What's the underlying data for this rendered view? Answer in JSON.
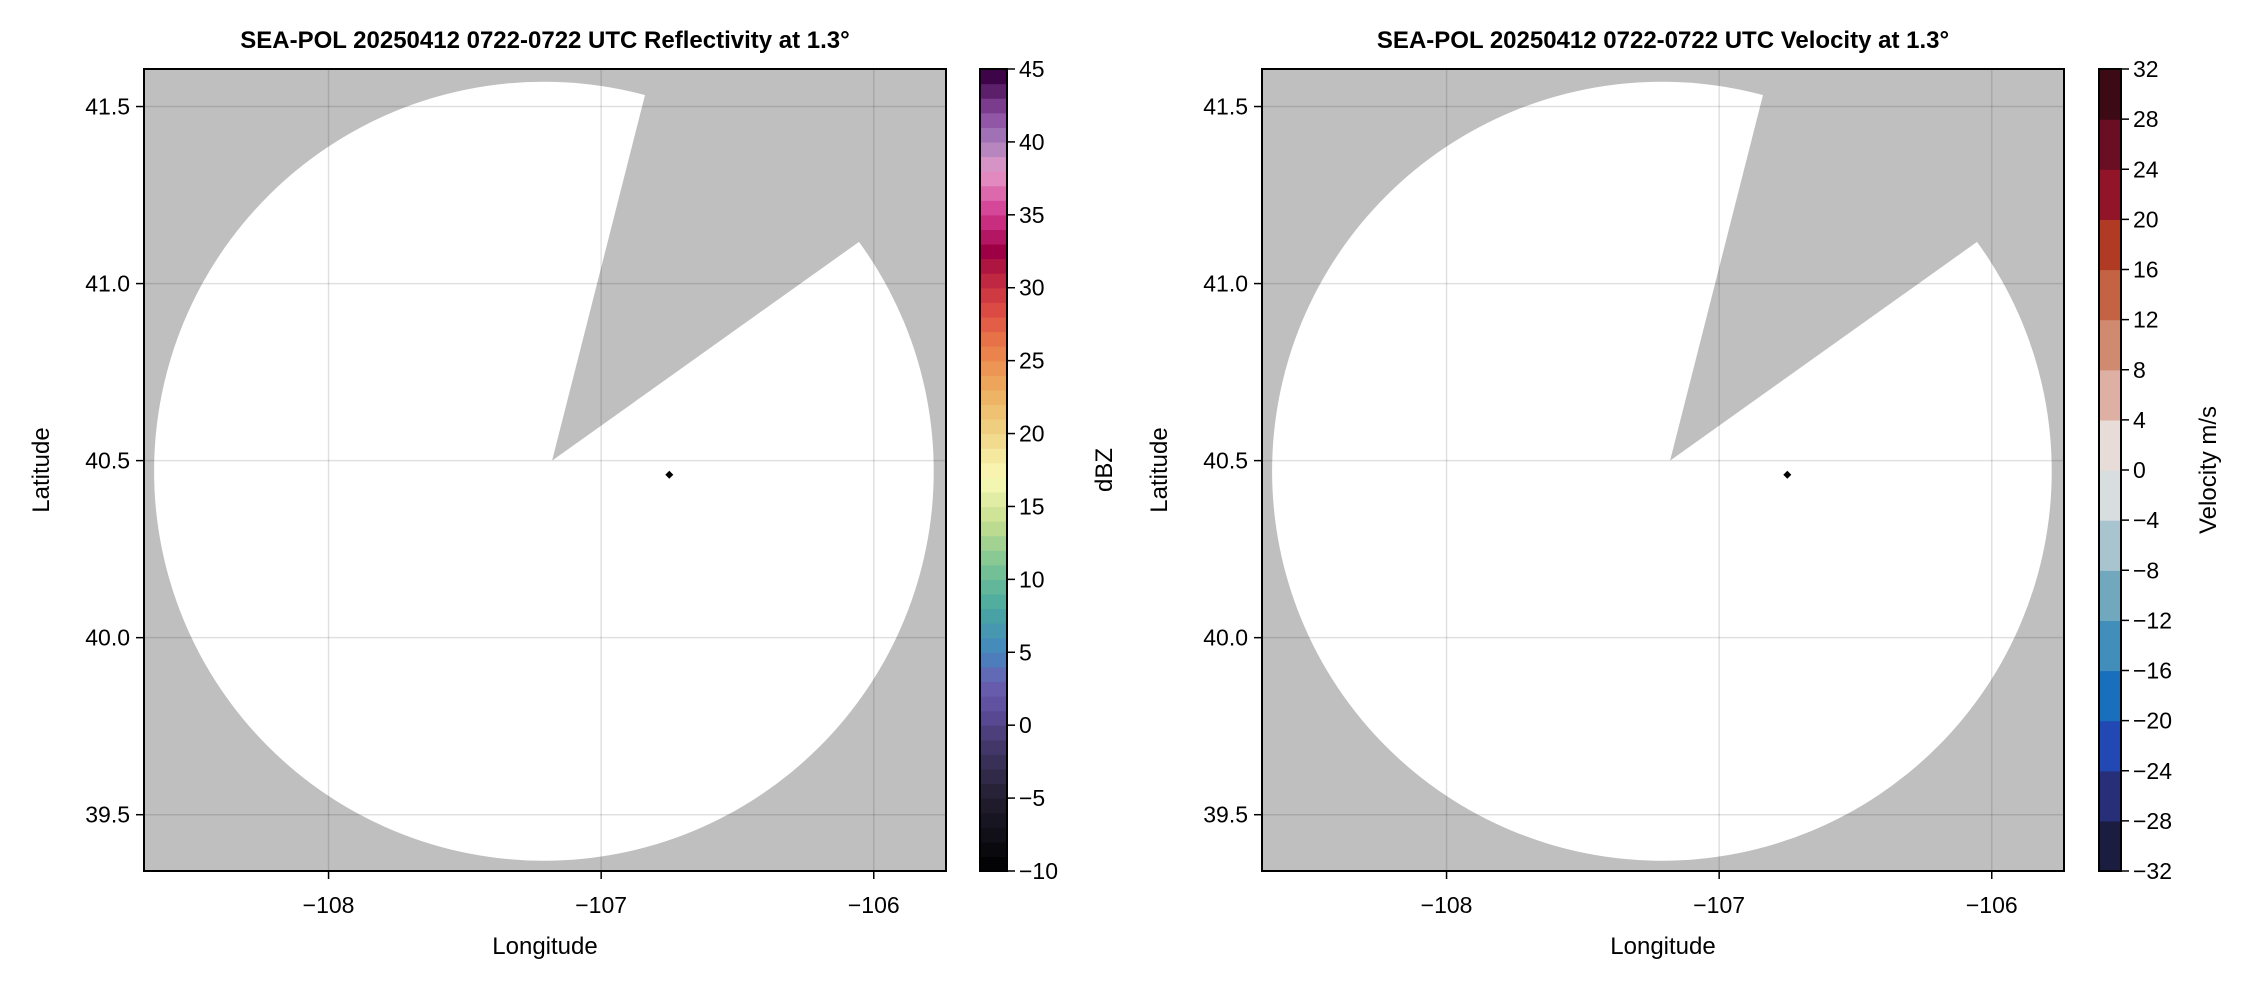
{
  "chart_data": [
    {
      "type": "heatmap",
      "title": "SEA-POL 20250412 0722-0722 UTC Reflectivity at 1.3°",
      "xlabel": "Longitude",
      "ylabel": "Latitude",
      "xlim": [
        -108.677,
        -105.735
      ],
      "ylim": [
        39.341,
        41.606
      ],
      "xticks": [
        "−108",
        "−107",
        "−106"
      ],
      "xtick_values": [
        -108,
        -107,
        -106
      ],
      "yticks": [
        "39.5",
        "40.0",
        "40.5",
        "41.0",
        "41.5"
      ],
      "ytick_values": [
        39.5,
        40.0,
        40.5,
        41.0,
        41.5
      ],
      "grid": true,
      "background_color": "#bfbfbf",
      "coverage": {
        "center": [
          -107.21,
          40.47
        ],
        "radius_lon": 1.43,
        "radius_lat": 1.1,
        "fill": "#ffffff"
      },
      "blocked_sector": {
        "apex": [
          -107.18,
          40.5
        ],
        "ray1_end": [
          -106.84,
          41.53
        ],
        "ray2_end": [
          -106.05,
          41.12
        ]
      },
      "marker": {
        "lon": -106.75,
        "lat": 40.46
      },
      "colorbar": {
        "label": "dBZ",
        "range": [
          -10,
          45
        ],
        "bin": 1,
        "ticks": [
          "−10",
          "−5",
          "0",
          "5",
          "10",
          "15",
          "20",
          "25",
          "30",
          "35",
          "40",
          "45"
        ],
        "tick_values": [
          -10,
          -5,
          0,
          5,
          10,
          15,
          20,
          25,
          30,
          35,
          40,
          45
        ],
        "color_stops": [
          [
            -10,
            "#000000"
          ],
          [
            -5,
            "#221e30"
          ],
          [
            -1,
            "#463a70"
          ],
          [
            1,
            "#5c4c9c"
          ],
          [
            3,
            "#6a60b0"
          ],
          [
            5,
            "#4586c0"
          ],
          [
            8,
            "#48a8a0"
          ],
          [
            11,
            "#7cc494"
          ],
          [
            14,
            "#c8e090"
          ],
          [
            17,
            "#fafab8"
          ],
          [
            20,
            "#f0d585"
          ],
          [
            23,
            "#eead60"
          ],
          [
            26,
            "#ea7c48"
          ],
          [
            28.5,
            "#dc4a44"
          ],
          [
            31,
            "#b8203f"
          ],
          [
            32.5,
            "#9e0046"
          ],
          [
            35,
            "#d2388f"
          ],
          [
            38,
            "#e599c8"
          ],
          [
            40,
            "#a77fbc"
          ],
          [
            42,
            "#8a4a9e"
          ],
          [
            44.5,
            "#3e0448"
          ]
        ]
      }
    },
    {
      "type": "heatmap",
      "title": "SEA-POL 20250412 0722-0722 UTC Velocity at 1.3°",
      "xlabel": "Longitude",
      "ylabel": "Latitude",
      "xlim": [
        -108.677,
        -105.735
      ],
      "ylim": [
        39.341,
        41.606
      ],
      "xticks": [
        "−108",
        "−107",
        "−106"
      ],
      "xtick_values": [
        -108,
        -107,
        -106
      ],
      "yticks": [
        "39.5",
        "40.0",
        "40.5",
        "41.0",
        "41.5"
      ],
      "ytick_values": [
        39.5,
        40.0,
        40.5,
        41.0,
        41.5
      ],
      "grid": true,
      "background_color": "#bfbfbf",
      "coverage": {
        "center": [
          -107.21,
          40.47
        ],
        "radius_lon": 1.43,
        "radius_lat": 1.1,
        "fill": "#ffffff"
      },
      "blocked_sector": {
        "apex": [
          -107.18,
          40.5
        ],
        "ray1_end": [
          -106.84,
          41.53
        ],
        "ray2_end": [
          -106.05,
          41.12
        ]
      },
      "marker": {
        "lon": -106.75,
        "lat": 40.46
      },
      "colorbar": {
        "label": "Velocity m/s",
        "range": [
          -32,
          32
        ],
        "bin": 4,
        "ticks": [
          "−32",
          "−28",
          "−24",
          "−20",
          "−16",
          "−12",
          "−8",
          "−4",
          "0",
          "4",
          "8",
          "12",
          "16",
          "20",
          "24",
          "28",
          "32"
        ],
        "tick_values": [
          -32,
          -28,
          -24,
          -20,
          -16,
          -12,
          -8,
          -4,
          0,
          4,
          8,
          12,
          16,
          20,
          24,
          28,
          32
        ],
        "bin_colors": [
          "#1a1c40",
          "#262f78",
          "#2248b4",
          "#1870bc",
          "#428ebb",
          "#72a8be",
          "#a8c4ce",
          "#d8dde0",
          "#e8dcd8",
          "#deb0a4",
          "#d08a70",
          "#c46244",
          "#b03a24",
          "#921428",
          "#6a0e24",
          "#3c0a14"
        ]
      }
    }
  ]
}
